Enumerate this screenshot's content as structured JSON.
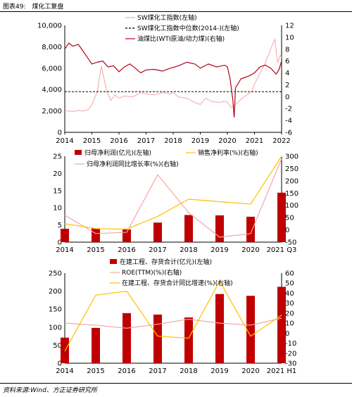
{
  "header": {
    "figure_tag": "图表49:",
    "title": "煤化工复盘"
  },
  "footer": {
    "source": "资料来源:Wind、方正证券研究所"
  },
  "chart_data": [
    {
      "type": "line",
      "x_ticks": [
        "2014",
        "2015",
        "2016",
        "2017",
        "2018",
        "2019",
        "2020",
        "2021",
        "2022"
      ],
      "y_left": {
        "ticks": [
          0,
          2000,
          4000,
          6000,
          8000,
          10000
        ],
        "tick_labels": [
          "0",
          "2,000",
          "4,000",
          "6,000",
          "8,000",
          "10,000"
        ],
        "lim": [
          0,
          10000
        ]
      },
      "y_right": {
        "ticks": [
          -6,
          -4,
          -2,
          0,
          2,
          4,
          6,
          8,
          10,
          12
        ],
        "lim": [
          -6,
          12
        ]
      },
      "legend": [
        "SW煤化工指数(左轴)",
        "SW煤化工指数中位数(2014-)(左轴)",
        "油煤比(WTI原油/动力煤)(右轴)"
      ],
      "series": [
        {
          "name": "SW煤化工指数(左轴)",
          "axis": "left",
          "color": "#f4a6a6",
          "points": [
            [
              2014.0,
              2100
            ],
            [
              2014.1,
              2000
            ],
            [
              2014.3,
              1950
            ],
            [
              2014.5,
              2050
            ],
            [
              2014.7,
              2000
            ],
            [
              2014.9,
              2200
            ],
            [
              2015.0,
              2600
            ],
            [
              2015.2,
              3800
            ],
            [
              2015.35,
              6200
            ],
            [
              2015.45,
              5000
            ],
            [
              2015.55,
              3800
            ],
            [
              2015.7,
              3000
            ],
            [
              2015.85,
              3500
            ],
            [
              2016.0,
              3200
            ],
            [
              2016.2,
              3400
            ],
            [
              2016.5,
              3300
            ],
            [
              2016.8,
              3700
            ],
            [
              2017.0,
              3600
            ],
            [
              2017.3,
              3500
            ],
            [
              2017.6,
              3700
            ],
            [
              2017.9,
              3600
            ],
            [
              2018.0,
              3700
            ],
            [
              2018.2,
              3300
            ],
            [
              2018.5,
              3200
            ],
            [
              2018.8,
              2800
            ],
            [
              2019.0,
              2600
            ],
            [
              2019.2,
              3200
            ],
            [
              2019.4,
              2900
            ],
            [
              2019.7,
              2800
            ],
            [
              2019.9,
              2900
            ],
            [
              2020.0,
              2800
            ],
            [
              2020.15,
              2300
            ],
            [
              2020.3,
              2600
            ],
            [
              2020.6,
              3300
            ],
            [
              2020.9,
              3800
            ],
            [
              2021.0,
              4500
            ],
            [
              2021.2,
              5500
            ],
            [
              2021.4,
              6500
            ],
            [
              2021.6,
              7800
            ],
            [
              2021.75,
              8700
            ],
            [
              2021.85,
              6500
            ],
            [
              2021.95,
              7200
            ],
            [
              2022.0,
              7000
            ]
          ]
        },
        {
          "name": "SW煤化工指数中位数(2014-)(左轴)",
          "axis": "left",
          "color": "#000000",
          "dashed": true,
          "value": 3800
        },
        {
          "name": "油煤比(WTI原油/动力煤)(右轴)",
          "axis": "right",
          "color": "#b3001b",
          "points": [
            [
              2014.0,
              8.0
            ],
            [
              2014.15,
              9.0
            ],
            [
              2014.3,
              8.5
            ],
            [
              2014.5,
              8.8
            ],
            [
              2014.7,
              7.5
            ],
            [
              2014.85,
              6.5
            ],
            [
              2015.0,
              5.5
            ],
            [
              2015.2,
              5.8
            ],
            [
              2015.4,
              6.0
            ],
            [
              2015.6,
              5.0
            ],
            [
              2015.8,
              5.2
            ],
            [
              2016.0,
              4.2
            ],
            [
              2016.2,
              5.0
            ],
            [
              2016.4,
              5.5
            ],
            [
              2016.6,
              4.8
            ],
            [
              2016.8,
              4.0
            ],
            [
              2017.0,
              4.5
            ],
            [
              2017.3,
              4.6
            ],
            [
              2017.6,
              4.3
            ],
            [
              2017.9,
              4.8
            ],
            [
              2018.2,
              5.2
            ],
            [
              2018.5,
              5.8
            ],
            [
              2018.8,
              5.5
            ],
            [
              2019.0,
              4.8
            ],
            [
              2019.3,
              5.5
            ],
            [
              2019.6,
              5.0
            ],
            [
              2019.9,
              5.3
            ],
            [
              2020.0,
              5.0
            ],
            [
              2020.1,
              3.0
            ],
            [
              2020.2,
              -0.5
            ],
            [
              2020.25,
              -3.5
            ],
            [
              2020.3,
              1.5
            ],
            [
              2020.5,
              3.0
            ],
            [
              2020.8,
              3.5
            ],
            [
              2021.0,
              4.0
            ],
            [
              2021.2,
              5.0
            ],
            [
              2021.4,
              5.3
            ],
            [
              2021.6,
              4.8
            ],
            [
              2021.8,
              3.8
            ],
            [
              2021.9,
              4.5
            ],
            [
              2022.0,
              6.0
            ]
          ]
        }
      ]
    },
    {
      "type": "bar",
      "categories": [
        "2014",
        "2015",
        "2016",
        "2017",
        "2018",
        "2019",
        "2020",
        "2021 Q3"
      ],
      "y_left": {
        "ticks": [
          0,
          5,
          10,
          15,
          20,
          25
        ],
        "lim": [
          0,
          25
        ]
      },
      "y_right": {
        "ticks": [
          -50,
          0,
          50,
          100,
          150,
          200,
          250,
          300
        ],
        "lim": [
          -50,
          300
        ]
      },
      "legend": [
        "归母净利润(亿元)(左轴)",
        "销售净利率(%)(右轴)",
        "归母净利润同比增长率(%)(右轴)"
      ],
      "series": [
        {
          "name": "归母净利润(亿元)(左轴)",
          "kind": "bar",
          "axis": "left",
          "color": "#c00000",
          "values": [
            3.9,
            4.0,
            3.7,
            5.7,
            7.9,
            7.8,
            7.4,
            14.4
          ]
        },
        {
          "name": "销售净利率(%)(右轴)",
          "kind": "line",
          "axis": "right",
          "color": "#ffc000",
          "values": [
            25,
            5,
            3,
            55,
            125,
            115,
            105,
            300
          ]
        },
        {
          "name": "归母净利润同比增长率(%)(右轴)",
          "kind": "line",
          "axis": "right",
          "color": "#f4a6a6",
          "values": [
            60,
            -15,
            -10,
            225,
            70,
            -30,
            -15,
            290
          ]
        }
      ]
    },
    {
      "type": "bar",
      "categories": [
        "2014",
        "2015",
        "2016",
        "2017",
        "2018",
        "2019",
        "2020",
        "2021 H1"
      ],
      "y_left": {
        "ticks": [
          0,
          50,
          100,
          150,
          200,
          250
        ],
        "lim": [
          0,
          250
        ]
      },
      "y_right": {
        "ticks": [
          -30,
          -20,
          -10,
          0,
          10,
          20,
          30,
          40,
          50,
          60
        ],
        "lim": [
          -30,
          60
        ]
      },
      "legend": [
        "在建工程、存货合计(亿元)(左轴)",
        "ROE(TTM)(%)(右轴)",
        "在建工程、存货合计同比增速(%)(右轴)"
      ],
      "series": [
        {
          "name": "在建工程、存货合计(亿元)(左轴)",
          "kind": "bar",
          "axis": "left",
          "color": "#c00000",
          "values": [
            71,
            98,
            139,
            135,
            127,
            192,
            187,
            212
          ]
        },
        {
          "name": "ROE(TTM)(%)(右轴)",
          "kind": "line",
          "axis": "right",
          "color": "#f4a6a6",
          "values": [
            10,
            8,
            5,
            9,
            14,
            10,
            8,
            15
          ]
        },
        {
          "name": "在建工程、存货合计同比增速(%)(右轴)",
          "kind": "line",
          "axis": "right",
          "color": "#ffc000",
          "values": [
            -18,
            38,
            42,
            -3,
            -5,
            52,
            -3,
            18
          ]
        }
      ]
    }
  ]
}
